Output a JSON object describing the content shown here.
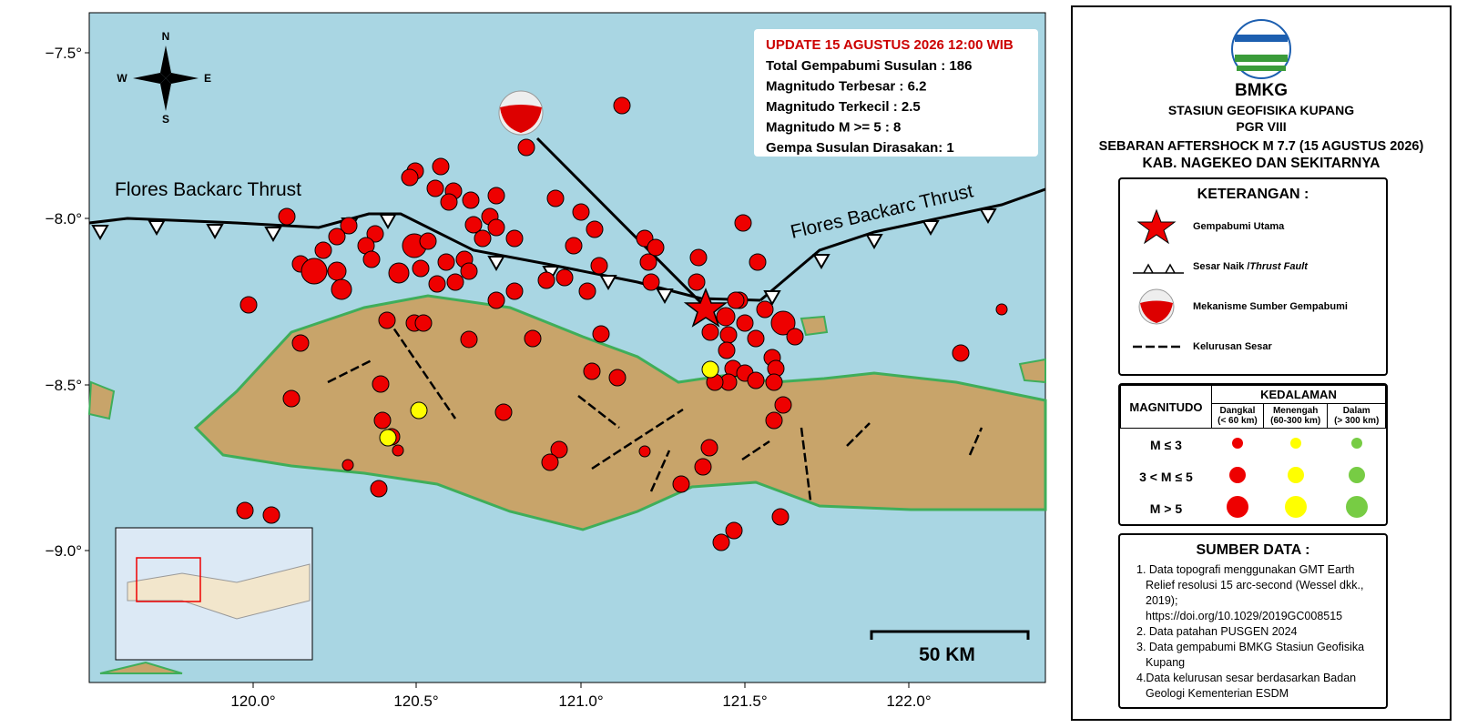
{
  "map": {
    "lat_labels": [
      "−7.5°",
      "−8.0°",
      "−8.5°",
      "−9.0°"
    ],
    "lon_labels": [
      "120.0°",
      "120.5°",
      "121.0°",
      "121.5°",
      "122.0°"
    ],
    "compass": {
      "n": "N",
      "e": "E",
      "s": "S",
      "w": "W"
    },
    "fault_labels": [
      "Flores Backarc Thrust",
      "Flores Backarc Thrust"
    ],
    "scale_label": "50 KM"
  },
  "info": {
    "update": "UPDATE 15 AGUSTUS 2026 12:00 WIB",
    "lines": [
      "Total Gempabumi Susulan : 186",
      "Magnitudo Terbesar : 6.2",
      "Magnitudo Terkecil : 2.5",
      "Magnitudo M >= 5 : 8",
      "Gempa Susulan Dirasakan: 1"
    ]
  },
  "legend": {
    "agency": "BMKG",
    "station": "STASIUN GEOFISIKA KUPANG",
    "pgr": "PGR VIII",
    "title": "SEBARAN AFTERSHOCK M 7.7 (15 AGUSTUS 2026)",
    "region": "KAB. NAGEKEO DAN SEKITARNYA",
    "keterangan": {
      "title": "KETERANGAN :",
      "main_quake": "Gempabumi Utama",
      "thrust": "Sesar Naik /",
      "thrust_en": "Thrust Fault",
      "mechanism": "Mekanisme Sumber Gempabumi",
      "lineament": "Kelurusan Sesar"
    },
    "table": {
      "magnitude": "MAGNITUDO",
      "depth": "KEDALAMAN",
      "columns": [
        [
          "Dangkal",
          "(< 60 km)"
        ],
        [
          "Menengah",
          "(60-300 km)"
        ],
        [
          "Dalam",
          "(> 300 km)"
        ]
      ],
      "rows": [
        "M ≤ 3",
        "3 < M ≤ 5",
        "M > 5"
      ]
    },
    "sources": {
      "title": "SUMBER DATA :",
      "items": [
        "1. Data topografi menggunakan GMT Earth Relief resolusi 15 arc-second (Wessel dkk., 2019); https://doi.org/10.1029/2019GC008515",
        "2. Data patahan PUSGEN 2024",
        "3. Data gempabumi BMKG Stasiun Geofisika Kupang",
        "4.Data kelurusan sesar berdasarkan Badan Geologi Kementerian ESDM"
      ]
    }
  }
}
